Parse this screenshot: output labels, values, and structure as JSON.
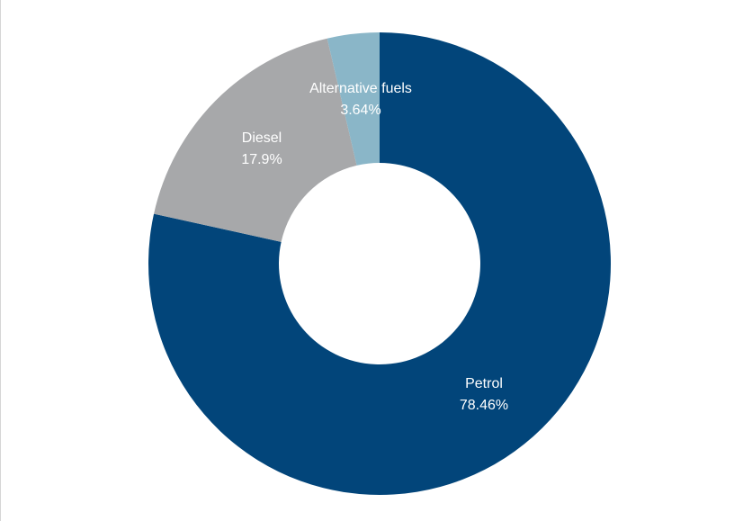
{
  "chart_data": {
    "type": "pie",
    "variant": "donut",
    "start_angle_deg": 0,
    "direction": "clockwise",
    "slices": [
      {
        "name": "Petrol",
        "value": 78.46,
        "value_label": "78.46%",
        "color": "#02457a"
      },
      {
        "name": "Diesel",
        "value": 17.9,
        "value_label": "17.9%",
        "color": "#a7a8aa"
      },
      {
        "name": "Alternative fuels",
        "value": 3.64,
        "value_label": "3.64%",
        "color": "#8ab6c8"
      }
    ]
  }
}
